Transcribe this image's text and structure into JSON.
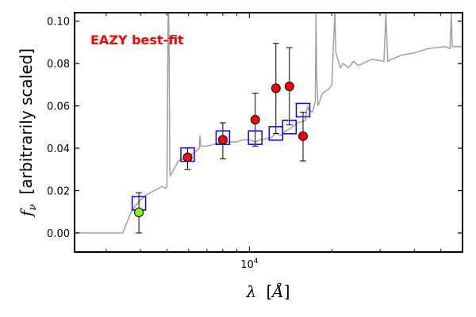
{
  "chart_data": {
    "type": "scatter",
    "title": "",
    "annotation": {
      "text": "EAZY best-fit",
      "color": "#ff0000"
    },
    "xlabel": {
      "symbol": "λ",
      "unit_open": "[",
      "unit": "Å",
      "unit_close": "]"
    },
    "ylabel": {
      "symbol": "f",
      "subscript": "ν",
      "text": "[arbitrarily scaled]"
    },
    "xscale": "log",
    "xlim": [
      2300,
      60000
    ],
    "ylim": [
      -0.009,
      0.104
    ],
    "x_tick_labels": [
      {
        "x": 10000,
        "base": "10",
        "exp": "4"
      }
    ],
    "y_ticks": [
      0.0,
      0.02,
      0.04,
      0.06,
      0.08,
      0.1
    ],
    "y_tick_labels": [
      "0.00",
      "0.02",
      "0.04",
      "0.06",
      "0.08",
      "0.10"
    ],
    "grid": false,
    "colors": {
      "sed": "#a0a0a0",
      "model_box": "#0000ff",
      "detection": "#ff0000",
      "highlight": "#80ff00",
      "errorbar": "#000000"
    },
    "series": [
      {
        "type": "line",
        "points": [
          [
            2300,
            0.0
          ],
          [
            3450,
            0.0
          ],
          [
            3700,
            0.01
          ],
          [
            3900,
            0.014
          ],
          [
            4200,
            0.018
          ],
          [
            4500,
            0.02
          ],
          [
            4800,
            0.022
          ],
          [
            4950,
            0.021
          ],
          [
            5000,
            0.022
          ],
          [
            5050,
            0.1
          ],
          [
            5070,
            0.104
          ],
          [
            5090,
            0.09
          ],
          [
            5120,
            0.03
          ],
          [
            5140,
            0.027
          ],
          [
            5200,
            0.028
          ],
          [
            5500,
            0.034
          ],
          [
            6000,
            0.036
          ],
          [
            6300,
            0.038
          ],
          [
            6560,
            0.04
          ],
          [
            6600,
            0.046
          ],
          [
            6650,
            0.041
          ],
          [
            7000,
            0.041
          ],
          [
            7500,
            0.042
          ],
          [
            8000,
            0.043
          ],
          [
            8500,
            0.043
          ],
          [
            9000,
            0.043
          ],
          [
            9500,
            0.044
          ],
          [
            10000,
            0.044
          ],
          [
            10500,
            0.043
          ],
          [
            11000,
            0.044
          ],
          [
            12000,
            0.045
          ],
          [
            12500,
            0.047
          ],
          [
            13000,
            0.046
          ],
          [
            13500,
            0.048
          ],
          [
            14000,
            0.049
          ],
          [
            15000,
            0.052
          ],
          [
            16000,
            0.053
          ],
          [
            16300,
            0.06
          ],
          [
            16500,
            0.058
          ],
          [
            17000,
            0.057
          ],
          [
            17400,
            0.062
          ],
          [
            17500,
            0.104
          ],
          [
            17600,
            0.075
          ],
          [
            17800,
            0.06
          ],
          [
            18500,
            0.066
          ],
          [
            19500,
            0.068
          ],
          [
            20000,
            0.07
          ],
          [
            20500,
            0.104
          ],
          [
            20700,
            0.085
          ],
          [
            21500,
            0.078
          ],
          [
            22000,
            0.08
          ],
          [
            23000,
            0.078
          ],
          [
            24000,
            0.081
          ],
          [
            25000,
            0.079
          ],
          [
            26000,
            0.08
          ],
          [
            28000,
            0.082
          ],
          [
            31000,
            0.081
          ],
          [
            31500,
            0.104
          ],
          [
            32000,
            0.081
          ],
          [
            33000,
            0.082
          ],
          [
            36000,
            0.084
          ],
          [
            40000,
            0.085
          ],
          [
            45000,
            0.087
          ],
          [
            52000,
            0.088
          ],
          [
            54000,
            0.087
          ],
          [
            54600,
            0.104
          ],
          [
            55000,
            0.088
          ],
          [
            60000,
            0.088
          ]
        ]
      },
      {
        "type": "model_flux",
        "points": [
          [
            3950,
            0.014
          ],
          [
            5950,
            0.037
          ],
          [
            8000,
            0.045
          ],
          [
            10500,
            0.045
          ],
          [
            12500,
            0.047
          ],
          [
            14000,
            0.05
          ],
          [
            15700,
            0.058
          ]
        ]
      },
      {
        "type": "observed",
        "points": [
          {
            "x": 3950,
            "y": 0.0097,
            "err": [
              0.0,
              0.019
            ],
            "color": "highlight"
          },
          {
            "x": 5950,
            "y": 0.0357,
            "err": [
              0.03,
              0.04
            ],
            "color": "detection"
          },
          {
            "x": 8000,
            "y": 0.044,
            "err": [
              0.035,
              0.052
            ],
            "color": "detection"
          },
          {
            "x": 10500,
            "y": 0.0535,
            "err": [
              0.041,
              0.066
            ],
            "color": "detection"
          },
          {
            "x": 12500,
            "y": 0.0683,
            "err": [
              0.047,
              0.0895
            ],
            "color": "detection"
          },
          {
            "x": 14000,
            "y": 0.0692,
            "err": [
              0.051,
              0.0875
            ],
            "color": "detection"
          },
          {
            "x": 15700,
            "y": 0.0457,
            "err": [
              0.034,
              0.057
            ],
            "color": "detection"
          }
        ]
      }
    ]
  }
}
